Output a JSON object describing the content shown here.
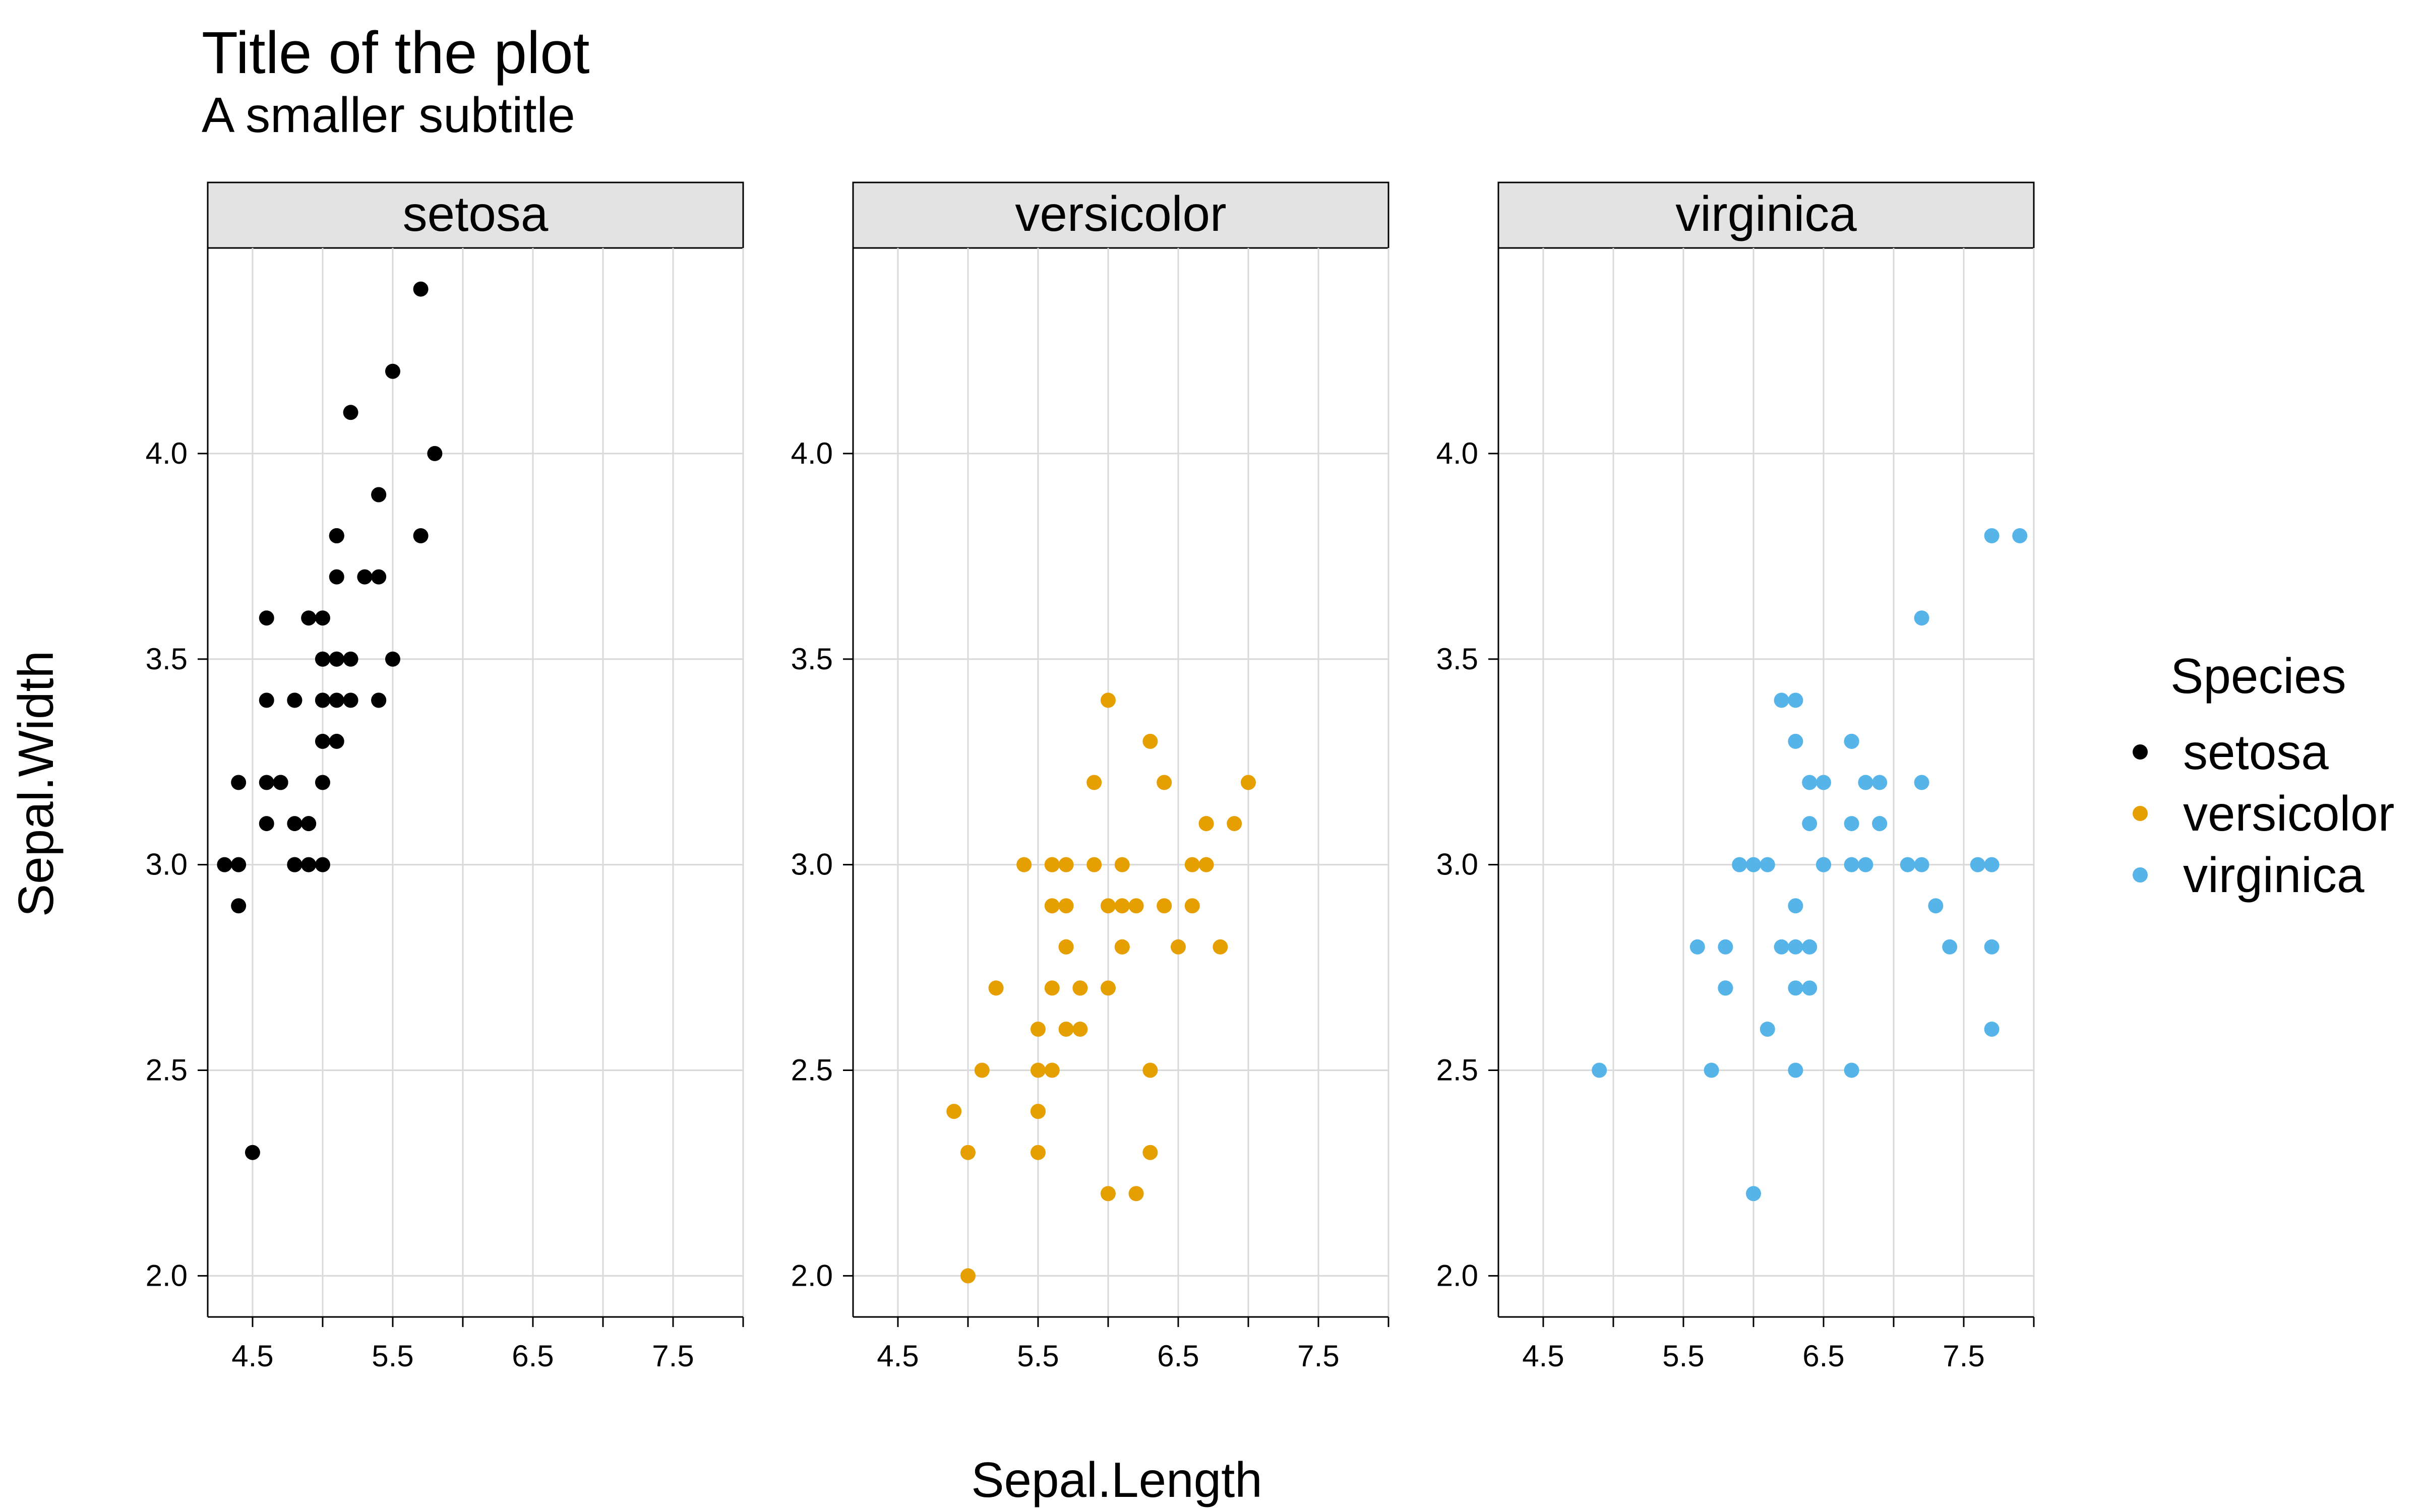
{
  "chart_data": {
    "type": "scatter",
    "title": "Title of the plot",
    "subtitle": "A smaller subtitle",
    "xlabel": "Sepal.Length",
    "ylabel": "Sepal.Width",
    "xlim": [
      4.18,
      8.0
    ],
    "ylim": [
      1.9,
      4.5
    ],
    "x_ticks": [
      4.5,
      5.5,
      6.5,
      7.5
    ],
    "x_tick_labels": [
      "4.5",
      "5.5",
      "6.5",
      "7.5"
    ],
    "x_minor_ticks": [
      5.0,
      6.0,
      7.0,
      8.0
    ],
    "y_ticks": [
      2.0,
      2.5,
      3.0,
      3.5,
      4.0
    ],
    "y_tick_labels": [
      "2.0",
      "2.5",
      "3.0",
      "3.5",
      "4.0"
    ],
    "grid": true,
    "legend": {
      "title": "Species",
      "position": "right",
      "entries": [
        "setosa",
        "versicolor",
        "virginica"
      ]
    },
    "facets": [
      "setosa",
      "versicolor",
      "virginica"
    ],
    "series": [
      {
        "name": "setosa",
        "color": "#000000",
        "points": [
          [
            5.1,
            3.5
          ],
          [
            4.9,
            3.0
          ],
          [
            4.7,
            3.2
          ],
          [
            4.6,
            3.1
          ],
          [
            5.0,
            3.6
          ],
          [
            5.4,
            3.9
          ],
          [
            4.6,
            3.4
          ],
          [
            5.0,
            3.4
          ],
          [
            4.4,
            2.9
          ],
          [
            4.9,
            3.1
          ],
          [
            5.4,
            3.7
          ],
          [
            4.8,
            3.4
          ],
          [
            4.8,
            3.0
          ],
          [
            4.3,
            3.0
          ],
          [
            5.8,
            4.0
          ],
          [
            5.7,
            4.4
          ],
          [
            5.4,
            3.9
          ],
          [
            5.1,
            3.5
          ],
          [
            5.7,
            3.8
          ],
          [
            5.1,
            3.8
          ],
          [
            5.4,
            3.4
          ],
          [
            5.1,
            3.7
          ],
          [
            4.6,
            3.6
          ],
          [
            5.1,
            3.3
          ],
          [
            4.8,
            3.4
          ],
          [
            5.0,
            3.0
          ],
          [
            5.0,
            3.4
          ],
          [
            5.2,
            3.5
          ],
          [
            5.2,
            3.4
          ],
          [
            4.7,
            3.2
          ],
          [
            4.8,
            3.1
          ],
          [
            5.4,
            3.4
          ],
          [
            5.2,
            4.1
          ],
          [
            5.5,
            4.2
          ],
          [
            4.9,
            3.1
          ],
          [
            5.0,
            3.2
          ],
          [
            5.5,
            3.5
          ],
          [
            4.9,
            3.6
          ],
          [
            4.4,
            3.0
          ],
          [
            5.1,
            3.4
          ],
          [
            5.0,
            3.5
          ],
          [
            4.5,
            2.3
          ],
          [
            4.4,
            3.2
          ],
          [
            5.0,
            3.5
          ],
          [
            5.1,
            3.8
          ],
          [
            4.8,
            3.0
          ],
          [
            5.1,
            3.8
          ],
          [
            4.6,
            3.2
          ],
          [
            5.3,
            3.7
          ],
          [
            5.0,
            3.3
          ]
        ]
      },
      {
        "name": "versicolor",
        "color": "#E69F00",
        "points": [
          [
            7.0,
            3.2
          ],
          [
            6.4,
            3.2
          ],
          [
            6.9,
            3.1
          ],
          [
            5.5,
            2.3
          ],
          [
            6.5,
            2.8
          ],
          [
            5.7,
            2.8
          ],
          [
            6.3,
            3.3
          ],
          [
            4.9,
            2.4
          ],
          [
            6.6,
            2.9
          ],
          [
            5.2,
            2.7
          ],
          [
            5.0,
            2.0
          ],
          [
            5.9,
            3.0
          ],
          [
            6.0,
            2.2
          ],
          [
            6.1,
            2.9
          ],
          [
            5.6,
            2.9
          ],
          [
            6.7,
            3.1
          ],
          [
            5.6,
            3.0
          ],
          [
            5.8,
            2.7
          ],
          [
            6.2,
            2.2
          ],
          [
            5.6,
            2.5
          ],
          [
            5.9,
            3.2
          ],
          [
            6.1,
            2.8
          ],
          [
            6.3,
            2.5
          ],
          [
            6.1,
            2.8
          ],
          [
            6.4,
            2.9
          ],
          [
            6.6,
            3.0
          ],
          [
            6.8,
            2.8
          ],
          [
            6.7,
            3.0
          ],
          [
            6.0,
            2.9
          ],
          [
            5.7,
            2.6
          ],
          [
            5.5,
            2.4
          ],
          [
            5.5,
            2.4
          ],
          [
            5.8,
            2.7
          ],
          [
            6.0,
            2.7
          ],
          [
            5.4,
            3.0
          ],
          [
            6.0,
            3.4
          ],
          [
            6.7,
            3.1
          ],
          [
            6.3,
            2.3
          ],
          [
            5.6,
            3.0
          ],
          [
            5.5,
            2.5
          ],
          [
            5.5,
            2.6
          ],
          [
            6.1,
            3.0
          ],
          [
            5.8,
            2.6
          ],
          [
            5.0,
            2.3
          ],
          [
            5.6,
            2.7
          ],
          [
            5.7,
            3.0
          ],
          [
            5.7,
            2.9
          ],
          [
            6.2,
            2.9
          ],
          [
            5.1,
            2.5
          ],
          [
            5.7,
            2.8
          ]
        ]
      },
      {
        "name": "virginica",
        "color": "#56B4E9",
        "points": [
          [
            6.3,
            3.3
          ],
          [
            5.8,
            2.7
          ],
          [
            7.1,
            3.0
          ],
          [
            6.3,
            2.9
          ],
          [
            6.5,
            3.0
          ],
          [
            7.6,
            3.0
          ],
          [
            4.9,
            2.5
          ],
          [
            7.3,
            2.9
          ],
          [
            6.7,
            2.5
          ],
          [
            7.2,
            3.6
          ],
          [
            6.5,
            3.2
          ],
          [
            6.4,
            2.7
          ],
          [
            6.8,
            3.0
          ],
          [
            5.7,
            2.5
          ],
          [
            5.8,
            2.8
          ],
          [
            6.4,
            3.2
          ],
          [
            6.5,
            3.0
          ],
          [
            7.7,
            3.8
          ],
          [
            7.7,
            2.6
          ],
          [
            6.0,
            2.2
          ],
          [
            6.9,
            3.2
          ],
          [
            5.6,
            2.8
          ],
          [
            7.7,
            2.8
          ],
          [
            6.3,
            2.7
          ],
          [
            6.7,
            3.3
          ],
          [
            7.2,
            3.2
          ],
          [
            6.2,
            2.8
          ],
          [
            6.1,
            3.0
          ],
          [
            6.4,
            2.8
          ],
          [
            7.2,
            3.0
          ],
          [
            7.4,
            2.8
          ],
          [
            7.9,
            3.8
          ],
          [
            6.4,
            2.8
          ],
          [
            6.3,
            2.8
          ],
          [
            6.1,
            2.6
          ],
          [
            7.7,
            3.0
          ],
          [
            6.3,
            3.4
          ],
          [
            6.4,
            3.1
          ],
          [
            6.0,
            3.0
          ],
          [
            6.9,
            3.1
          ],
          [
            6.7,
            3.1
          ],
          [
            6.9,
            3.1
          ],
          [
            5.8,
            2.7
          ],
          [
            6.8,
            3.2
          ],
          [
            6.7,
            3.3
          ],
          [
            6.7,
            3.0
          ],
          [
            6.3,
            2.5
          ],
          [
            6.5,
            3.0
          ],
          [
            6.2,
            3.4
          ],
          [
            5.9,
            3.0
          ]
        ]
      }
    ]
  }
}
